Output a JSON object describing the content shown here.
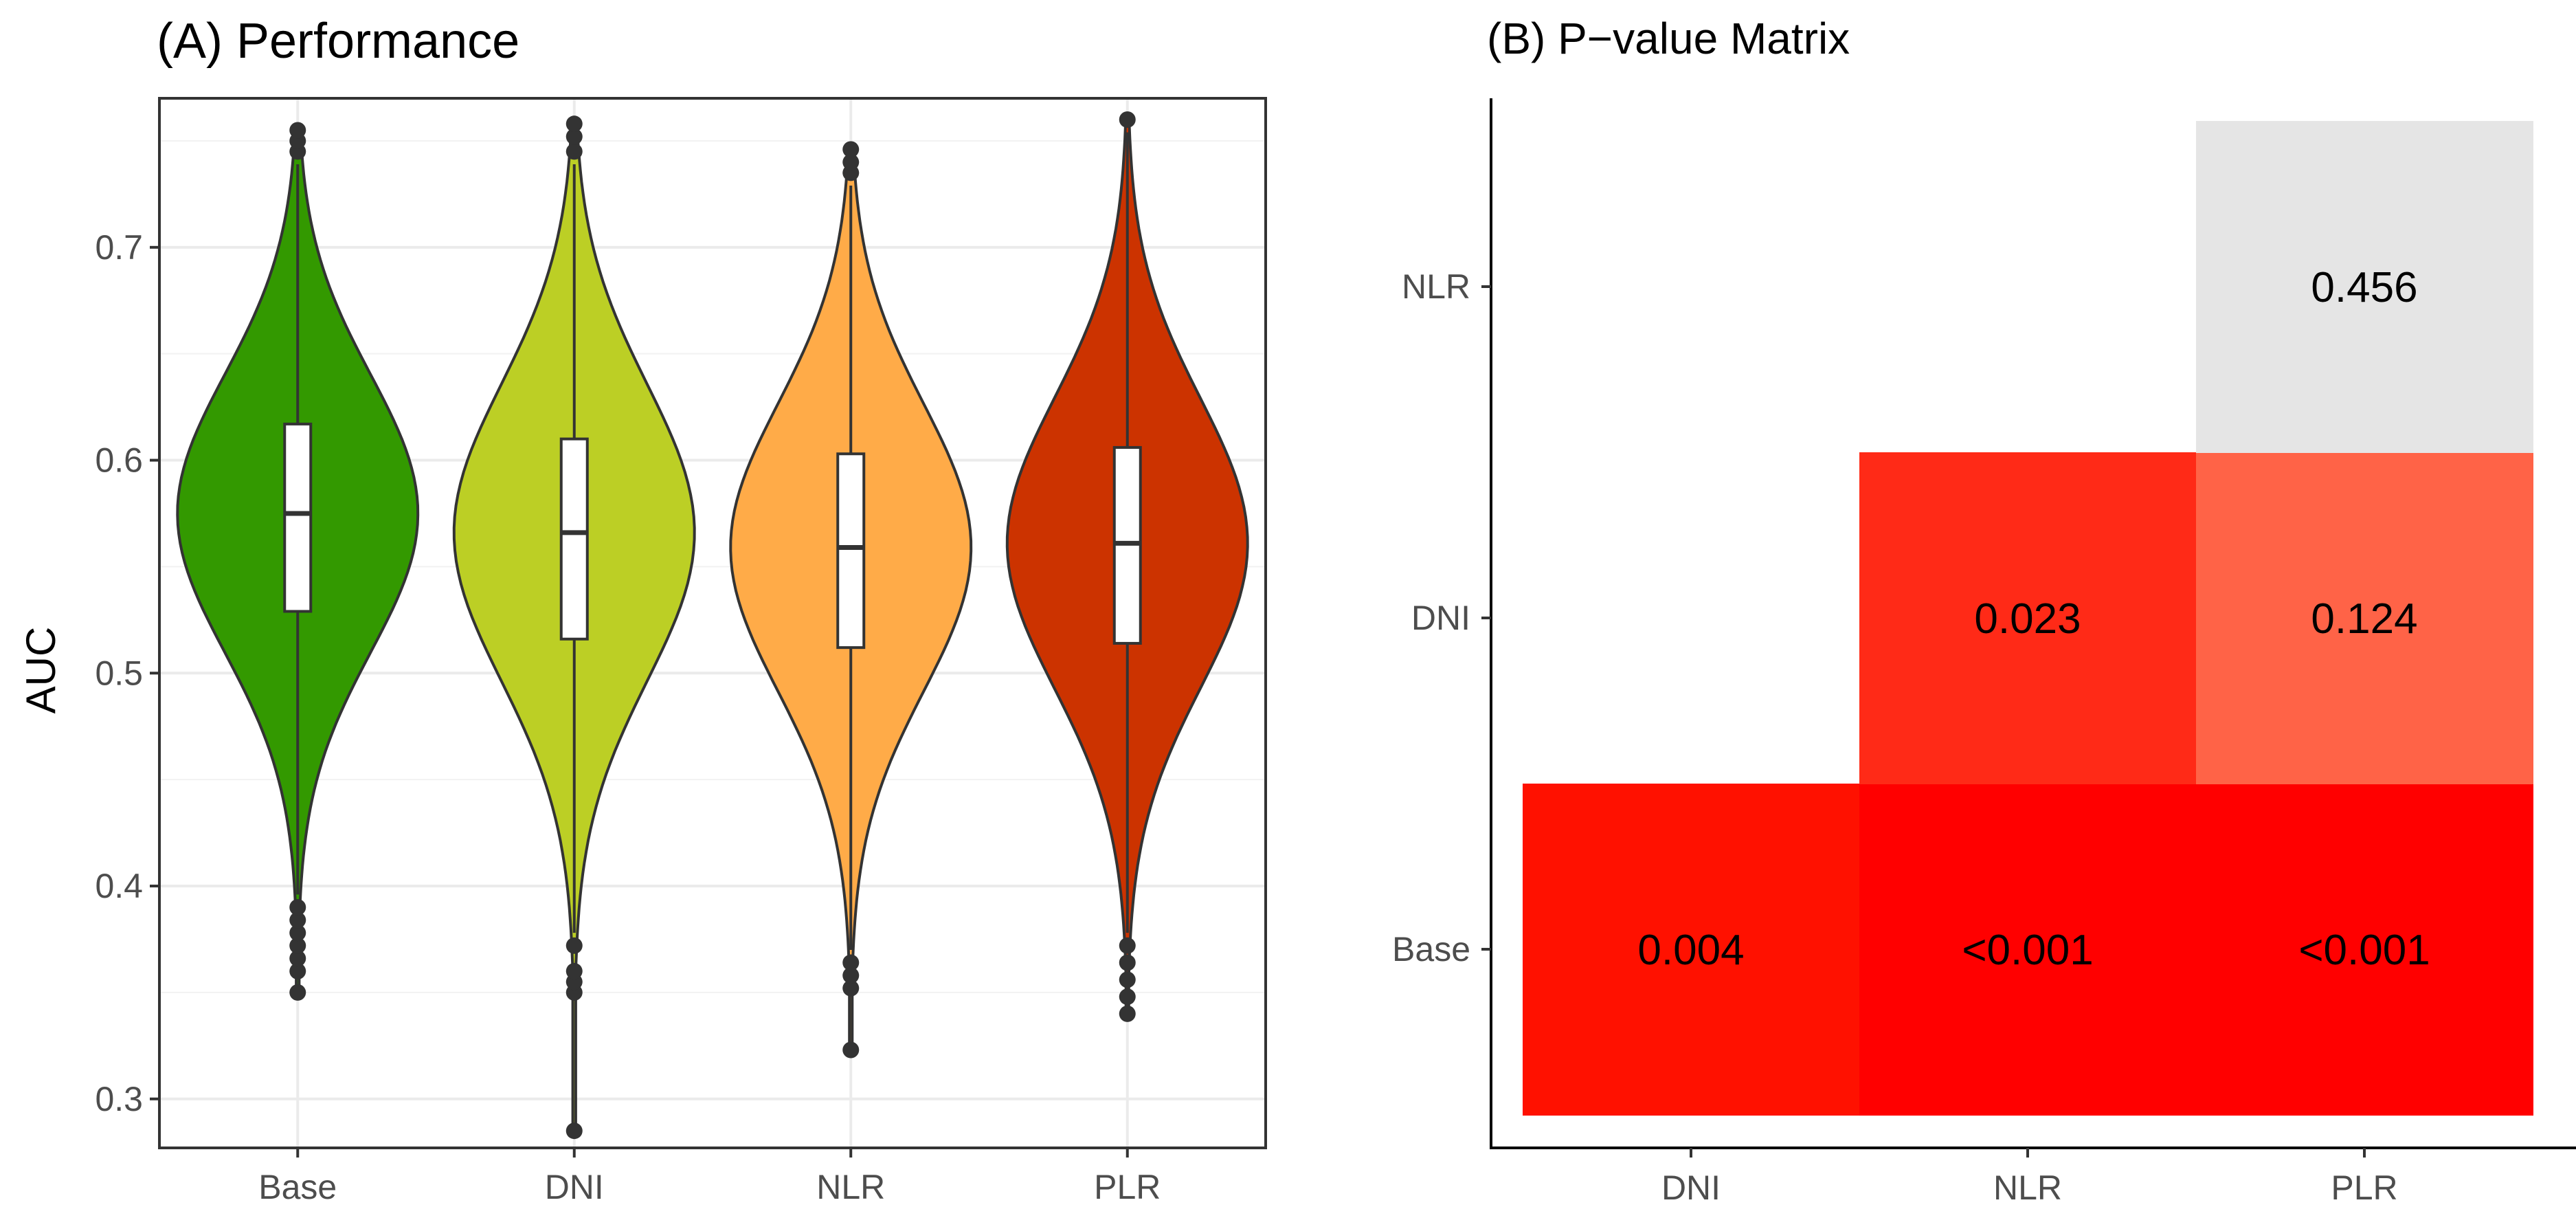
{
  "chart_data": [
    {
      "type": "violin",
      "title": "(A) Performance",
      "xlabel": "",
      "ylabel": "AUC",
      "categories": [
        "Base",
        "DNI",
        "NLR",
        "PLR"
      ],
      "ylim": [
        0.277,
        0.77
      ],
      "yticks": [
        0.3,
        0.4,
        0.5,
        0.6,
        0.7
      ],
      "grid": true,
      "colors": [
        "#339900",
        "#bccf25",
        "#ffab48",
        "#cc3300"
      ],
      "series": [
        {
          "category": "Base",
          "box": {
            "q1": 0.529,
            "median": 0.575,
            "q3": 0.617
          },
          "range": [
            0.352,
            0.752
          ],
          "outliers": [
            0.35,
            0.36,
            0.366,
            0.372,
            0.378,
            0.384,
            0.39,
            0.745,
            0.75,
            0.755
          ]
        },
        {
          "category": "DNI",
          "box": {
            "q1": 0.516,
            "median": 0.566,
            "q3": 0.61
          },
          "range": [
            0.285,
            0.757
          ],
          "outliers": [
            0.285,
            0.35,
            0.355,
            0.36,
            0.372,
            0.745,
            0.752,
            0.758
          ]
        },
        {
          "category": "NLR",
          "box": {
            "q1": 0.512,
            "median": 0.559,
            "q3": 0.603
          },
          "range": [
            0.323,
            0.745
          ],
          "outliers": [
            0.323,
            0.352,
            0.358,
            0.364,
            0.735,
            0.74,
            0.746
          ]
        },
        {
          "category": "PLR",
          "box": {
            "q1": 0.514,
            "median": 0.561,
            "q3": 0.606
          },
          "range": [
            0.34,
            0.76
          ],
          "outliers": [
            0.34,
            0.348,
            0.356,
            0.364,
            0.372,
            0.76
          ]
        }
      ]
    },
    {
      "type": "heatmap",
      "title": "(B) P−value Matrix",
      "xlabel": "",
      "ylabel": "",
      "x_categories": [
        "DNI",
        "NLR",
        "PLR"
      ],
      "y_categories": [
        "Base",
        "DNI",
        "NLR"
      ],
      "grid": false,
      "cells": [
        {
          "x": "DNI",
          "y": "Base",
          "value": 0.004,
          "label": "0.004",
          "color": "#ff1100"
        },
        {
          "x": "NLR",
          "y": "Base",
          "value": 0.001,
          "label": "<0.001",
          "color": "#ff0000"
        },
        {
          "x": "PLR",
          "y": "Base",
          "value": 0.001,
          "label": "<0.001",
          "color": "#ff0000"
        },
        {
          "x": "NLR",
          "y": "DNI",
          "value": 0.023,
          "label": "0.023",
          "color": "#ff2a17"
        },
        {
          "x": "PLR",
          "y": "DNI",
          "value": 0.124,
          "label": "0.124",
          "color": "#ff6347"
        },
        {
          "x": "PLR",
          "y": "NLR",
          "value": 0.456,
          "label": "0.456",
          "color": "#e5e5e5"
        }
      ]
    }
  ]
}
